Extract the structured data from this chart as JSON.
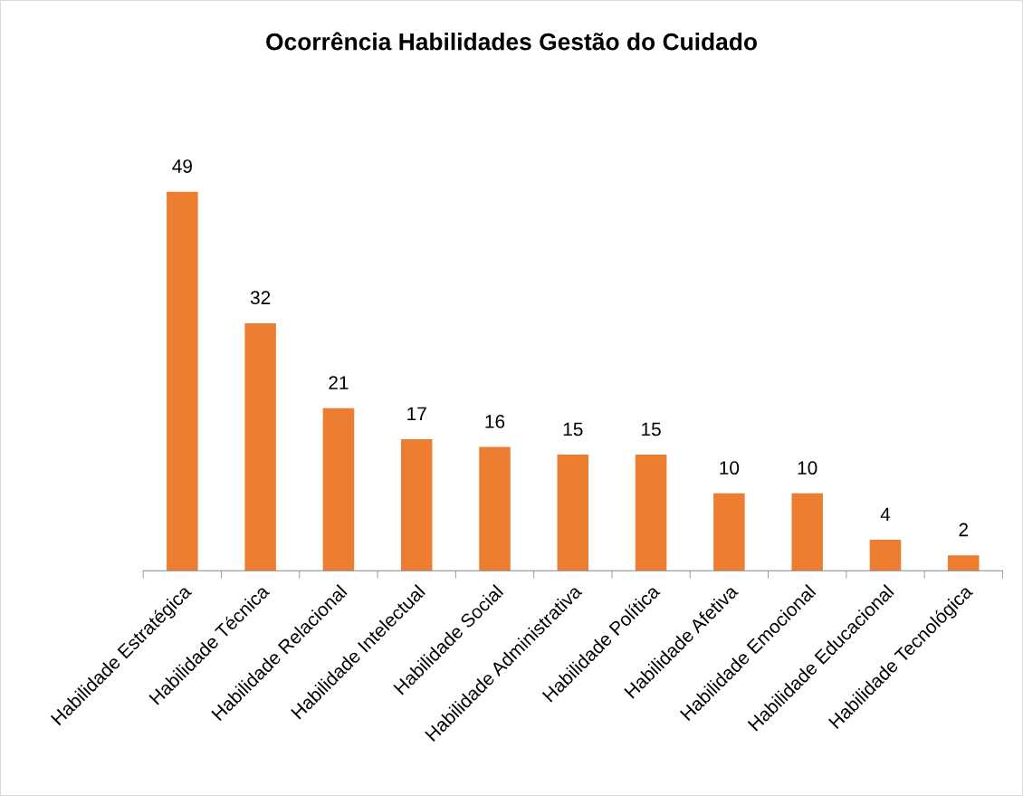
{
  "chart_data": {
    "type": "bar",
    "title": "Ocorrência Habilidades Gestão do Cuidado",
    "categories": [
      "Habilidade Estratégica",
      "Habilidade Técnica",
      "Habilidade Relacional",
      "Habilidade Intelectual",
      "Habilidade Social",
      "Habilidade Administrativa",
      "Habilidade Política",
      "Habilidade Afetiva",
      "Habilidade Emocional",
      "Habilidade Educacional",
      "Habilidade Tecnológica"
    ],
    "values": [
      49,
      32,
      21,
      17,
      16,
      15,
      15,
      10,
      10,
      4,
      2
    ],
    "color": "#ed7d31",
    "data_labels": true,
    "tick_labels": "x",
    "grid": false,
    "legend": false
  }
}
